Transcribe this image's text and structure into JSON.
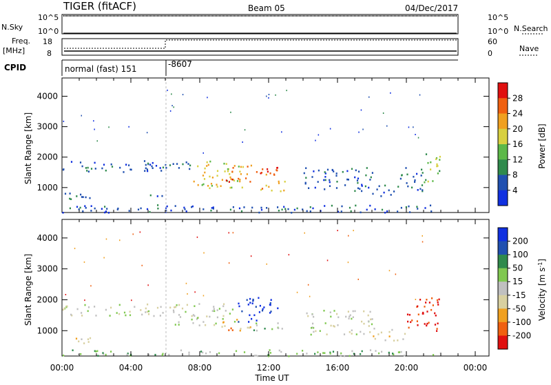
{
  "header": {
    "radar": "TIGER (fitACF)",
    "beam": "Beam 05",
    "date": "04/Dec/2017"
  },
  "left_labels": {
    "nsky": "N.Sky",
    "freq_l1": "Freq.",
    "freq_l2": "[MHz]",
    "cpid": "CPID"
  },
  "right_labels": {
    "nsearch": "N.Search",
    "nave": "Nave"
  },
  "nsky_ticks": [
    "10^5",
    "10^0"
  ],
  "nsearch_ticks": [
    "10^5",
    "10^0"
  ],
  "freq_ticks": [
    "18",
    "8"
  ],
  "nave_ticks": [
    "60",
    "0"
  ],
  "cpid": {
    "mode1": "normal (fast) 151",
    "mode2": "-8607"
  },
  "colors": {
    "power": [
      "#1030e0",
      "#2050b0",
      "#2f8a4c",
      "#5cb848",
      "#d8d040",
      "#f0a020",
      "#f06010",
      "#e01010"
    ],
    "velocity": [
      "#e01010",
      "#f06010",
      "#f0a020",
      "#d8d0a0",
      "#c0c0c0",
      "#80c850",
      "#2f8a4c",
      "#2050b0",
      "#1030e0"
    ]
  },
  "chart_data": [
    {
      "type": "heatmap",
      "quantity": "power",
      "ylabel": "Slant Range [km]",
      "xlabel": "Time UT",
      "x_ticks": [
        "00:00",
        "04:00",
        "08:00",
        "12:00",
        "16:00",
        "20:00",
        "00:00"
      ],
      "xlim_hours": [
        0,
        24
      ],
      "ylim_km": [
        180,
        4600
      ],
      "y_ticks": [
        1000,
        2000,
        3000,
        4000
      ],
      "colorbar": {
        "label": "Power [dB]",
        "ticks": [
          "4",
          "8",
          "12",
          "16",
          "20",
          "24",
          "28"
        ],
        "range": [
          0,
          30
        ]
      },
      "scatter_regions": [
        {
          "t": [
            0,
            6
          ],
          "r": [
            1500,
            1900
          ],
          "level": 1
        },
        {
          "t": [
            6,
            8
          ],
          "r": [
            1600,
            1900
          ],
          "level": 1
        },
        {
          "t": [
            7.5,
            10.5
          ],
          "r": [
            1000,
            1900
          ],
          "level": 4
        },
        {
          "t": [
            9.5,
            12.5
          ],
          "r": [
            1200,
            1800
          ],
          "level": 6
        },
        {
          "t": [
            11.5,
            13
          ],
          "r": [
            900,
            1300
          ],
          "level": 5
        },
        {
          "t": [
            14,
            18
          ],
          "r": [
            900,
            1700
          ],
          "level": 1
        },
        {
          "t": [
            18,
            19.5
          ],
          "r": [
            700,
            1100
          ],
          "level": 1
        },
        {
          "t": [
            19.5,
            21
          ],
          "r": [
            900,
            1700
          ],
          "level": 1
        },
        {
          "t": [
            21,
            22
          ],
          "r": [
            1200,
            2200
          ],
          "level": 3
        },
        {
          "t": [
            0,
            22
          ],
          "r": [
            200,
            450
          ],
          "level": 1
        },
        {
          "t": [
            0,
            2
          ],
          "r": [
            550,
            850
          ],
          "level": 1
        },
        {
          "t": [
            5,
            6
          ],
          "r": [
            700,
            900
          ],
          "level": 1
        }
      ]
    },
    {
      "type": "heatmap",
      "quantity": "velocity",
      "ylabel": "Slant Range [km]",
      "xlabel": "Time UT",
      "x_ticks": [
        "00:00",
        "04:00",
        "08:00",
        "12:00",
        "16:00",
        "20:00",
        "00:00"
      ],
      "xlim_hours": [
        0,
        24
      ],
      "ylim_km": [
        180,
        4600
      ],
      "y_ticks": [
        1000,
        2000,
        3000,
        4000
      ],
      "colorbar": {
        "label": "Velocity [m s^-1]",
        "ticks": [
          "-200",
          "-100",
          "-50",
          "-15",
          "15",
          "50",
          "100",
          "200"
        ]
      },
      "scatter_regions": [
        {
          "t": [
            0,
            6
          ],
          "r": [
            1500,
            1900
          ],
          "level": 4
        },
        {
          "t": [
            6,
            10
          ],
          "r": [
            1200,
            1900
          ],
          "level": 4
        },
        {
          "t": [
            10.2,
            12.5
          ],
          "r": [
            1300,
            2100
          ],
          "level": 8
        },
        {
          "t": [
            9,
            11
          ],
          "r": [
            1000,
            1400
          ],
          "level": 2
        },
        {
          "t": [
            11,
            13
          ],
          "r": [
            1000,
            1300
          ],
          "level": 5
        },
        {
          "t": [
            14,
            18
          ],
          "r": [
            900,
            1700
          ],
          "level": 4
        },
        {
          "t": [
            18,
            20
          ],
          "r": [
            700,
            1100
          ],
          "level": 3
        },
        {
          "t": [
            20,
            22
          ],
          "r": [
            1000,
            2100
          ],
          "level": 0
        },
        {
          "t": [
            0,
            22
          ],
          "r": [
            200,
            400
          ],
          "level": 5
        },
        {
          "t": [
            0,
            2
          ],
          "r": [
            600,
            800
          ],
          "level": 3
        }
      ]
    }
  ]
}
